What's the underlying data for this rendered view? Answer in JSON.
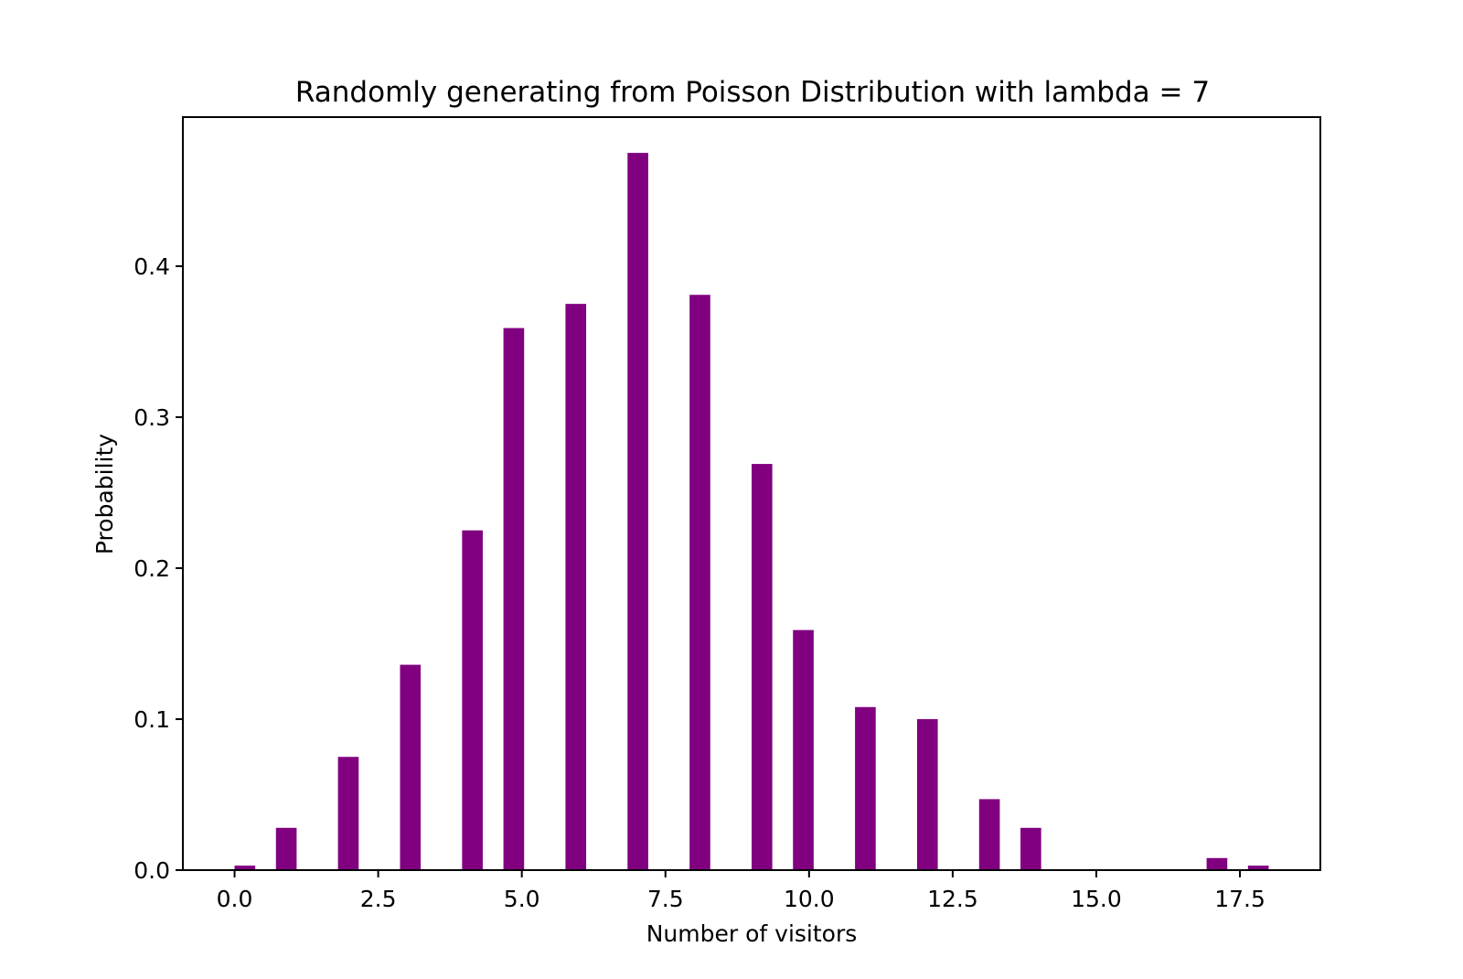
{
  "chart_data": {
    "type": "bar",
    "title": "Randomly generating from Poisson Distribution with lambda = 7",
    "xlabel": "Number of visitors",
    "ylabel": "Probability",
    "xlim": [
      -0.9,
      18.9
    ],
    "ylim": [
      0.0,
      0.4987
    ],
    "x_ticks": [
      0.0,
      2.5,
      5.0,
      7.5,
      10.0,
      12.5,
      15.0,
      17.5
    ],
    "x_tick_labels": [
      "0.0",
      "2.5",
      "5.0",
      "7.5",
      "10.0",
      "12.5",
      "15.0",
      "17.5"
    ],
    "y_ticks": [
      0.0,
      0.1,
      0.2,
      0.3,
      0.4
    ],
    "y_tick_labels": [
      "0.0",
      "0.1",
      "0.2",
      "0.3",
      "0.4"
    ],
    "bar_width": 0.36,
    "bar_color": "#800080",
    "grid": false,
    "bars": [
      {
        "x": 0.18,
        "value": 0.003
      },
      {
        "x": 0.9,
        "value": 0.028
      },
      {
        "x": 1.98,
        "value": 0.075
      },
      {
        "x": 3.06,
        "value": 0.136
      },
      {
        "x": 4.14,
        "value": 0.225
      },
      {
        "x": 4.86,
        "value": 0.359
      },
      {
        "x": 5.94,
        "value": 0.375
      },
      {
        "x": 7.02,
        "value": 0.475
      },
      {
        "x": 8.1,
        "value": 0.381
      },
      {
        "x": 9.18,
        "value": 0.269
      },
      {
        "x": 9.9,
        "value": 0.159
      },
      {
        "x": 10.98,
        "value": 0.108
      },
      {
        "x": 12.06,
        "value": 0.1
      },
      {
        "x": 13.14,
        "value": 0.047
      },
      {
        "x": 13.86,
        "value": 0.028
      },
      {
        "x": 17.1,
        "value": 0.008
      },
      {
        "x": 17.82,
        "value": 0.003
      }
    ]
  }
}
